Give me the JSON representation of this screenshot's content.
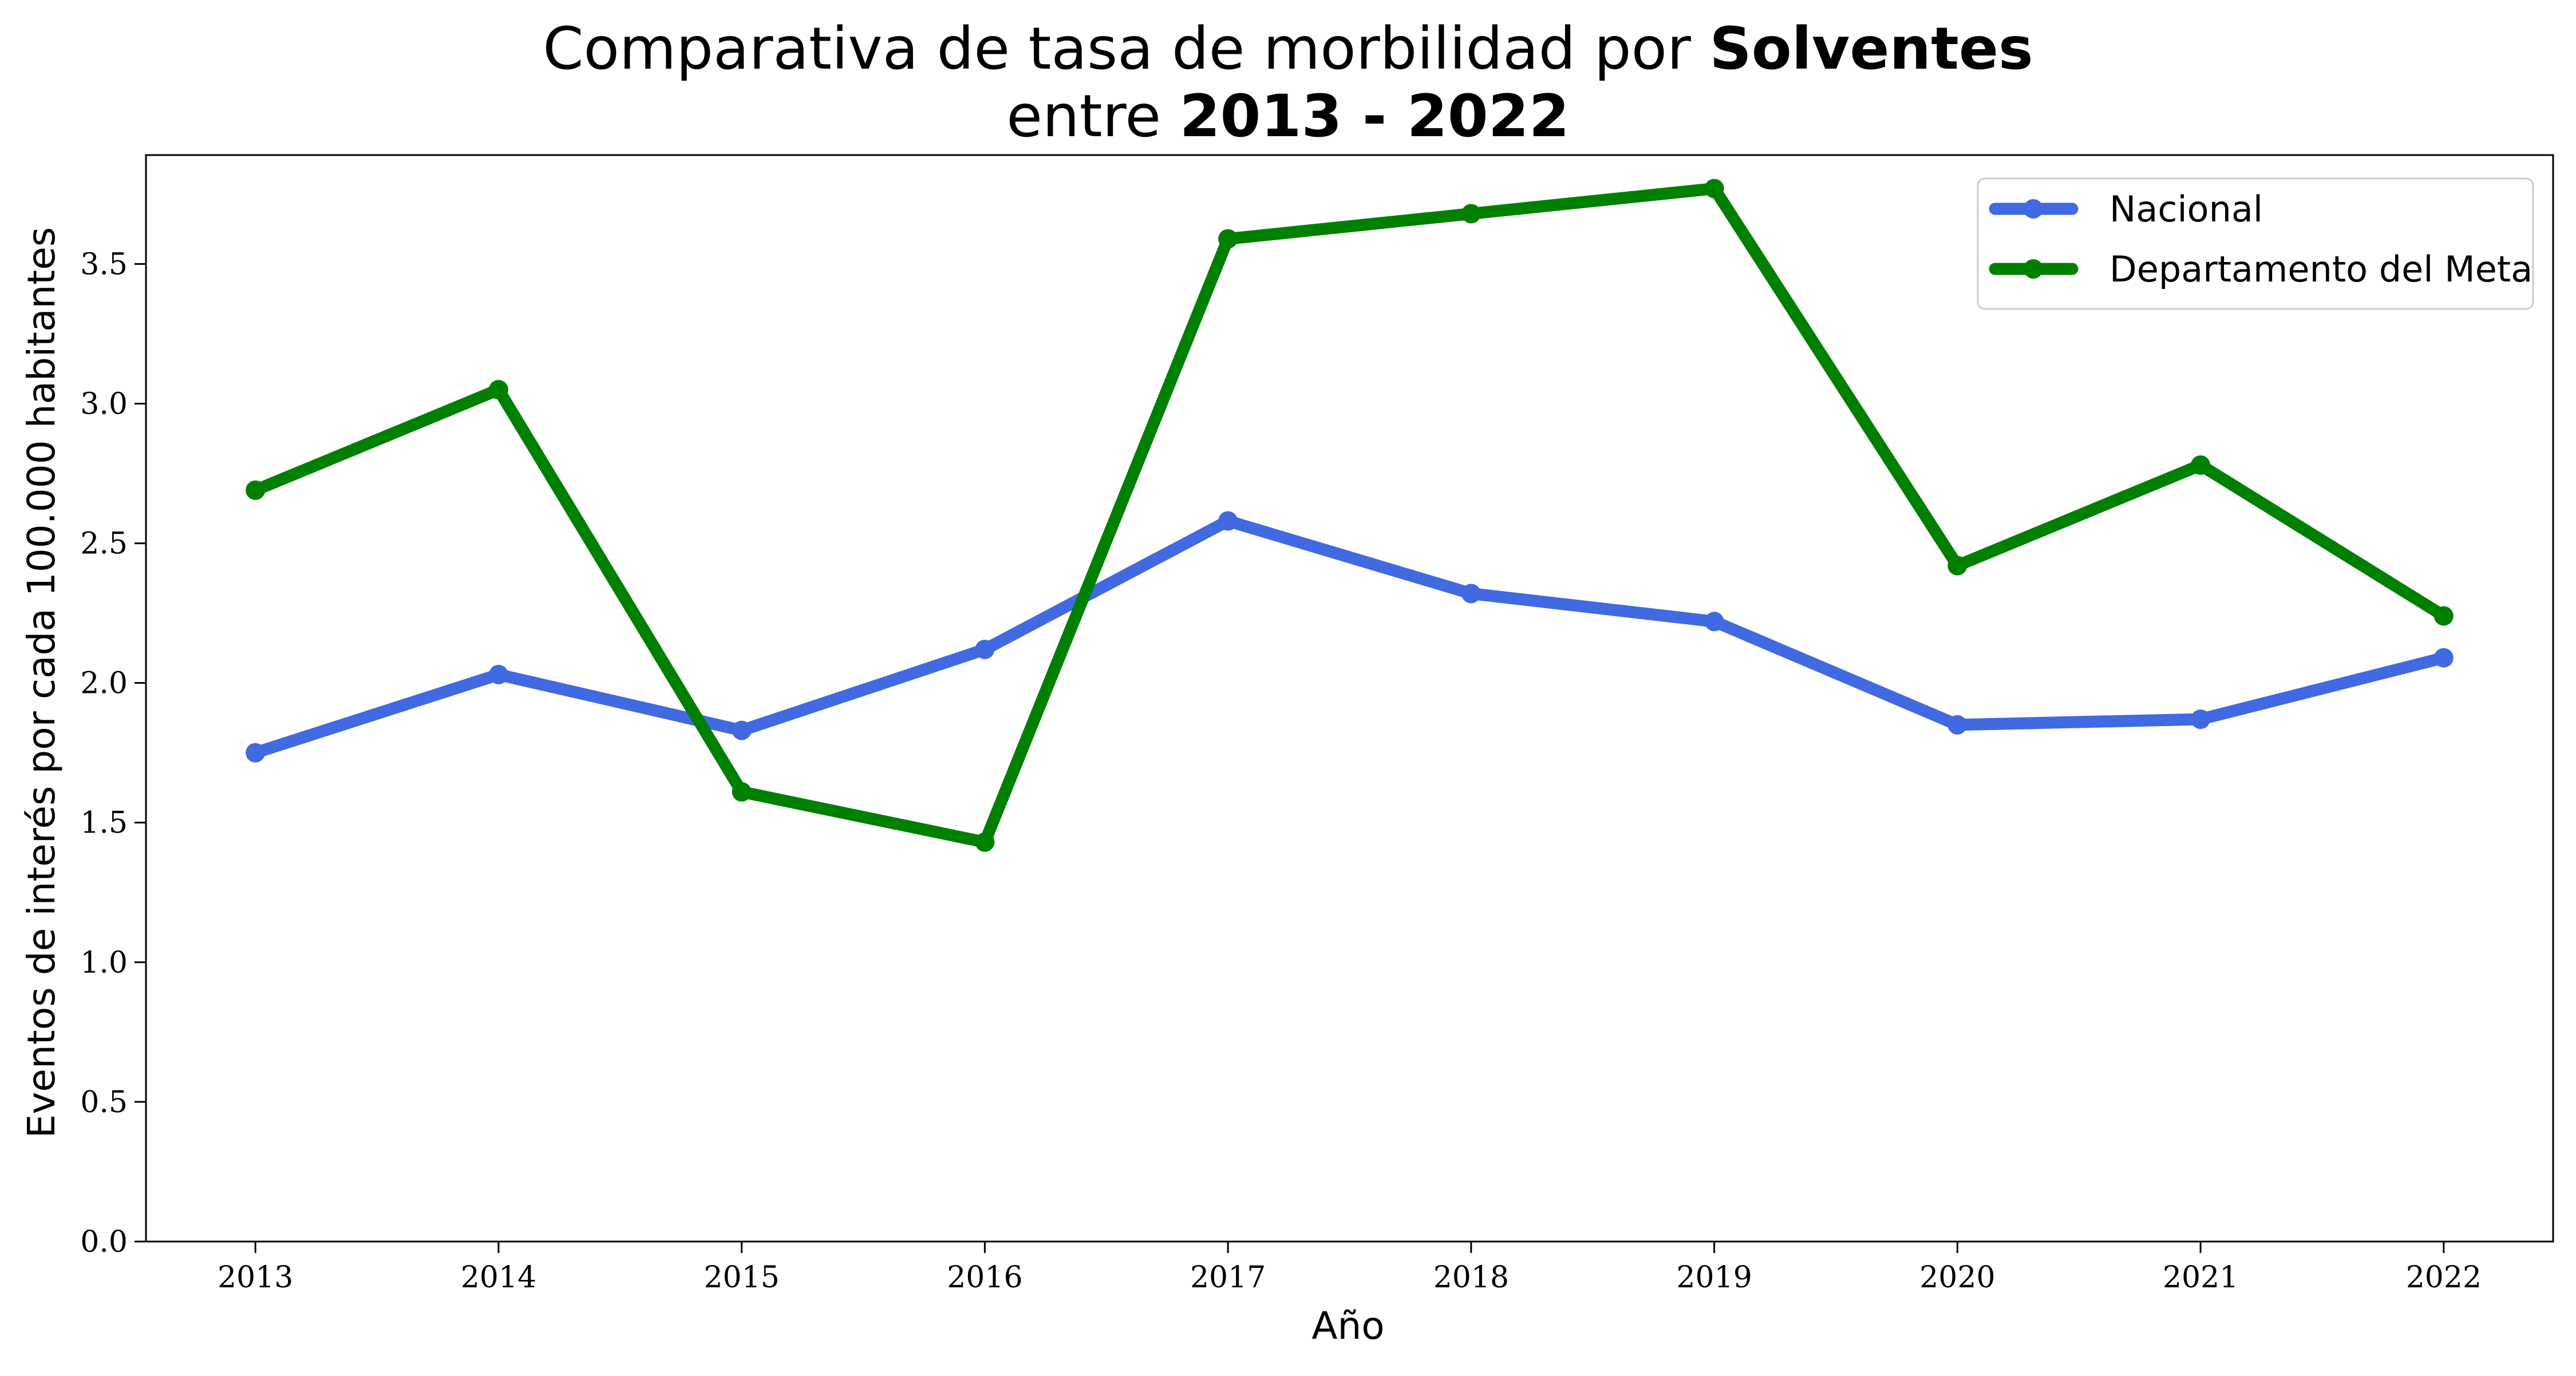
{
  "chart_data": {
    "type": "line",
    "title": {
      "line1_prefix": "Comparativa de tasa de morbilidad por ",
      "line1_bold": "Solventes",
      "line2_prefix": "entre ",
      "line2_bold": "2013 - 2022"
    },
    "xlabel": "Año",
    "ylabel": "Eventos de interés por cada 100.000 habitantes",
    "x": [
      2013,
      2014,
      2015,
      2016,
      2017,
      2018,
      2019,
      2020,
      2021,
      2022
    ],
    "x_tick_labels": [
      "2013",
      "2014",
      "2015",
      "2016",
      "2017",
      "2018",
      "2019",
      "2020",
      "2021",
      "2022"
    ],
    "y_ticks": [
      0.0,
      0.5,
      1.0,
      1.5,
      2.0,
      2.5,
      3.0,
      3.5
    ],
    "y_tick_labels": [
      "0.0",
      "0.5",
      "1.0",
      "1.5",
      "2.0",
      "2.5",
      "3.0",
      "3.5"
    ],
    "xlim": [
      2012.55,
      2022.45
    ],
    "ylim": [
      0,
      3.89
    ],
    "grid": false,
    "legend_position": "top-right",
    "series": [
      {
        "name": "Nacional",
        "color": "#4169e1",
        "values": [
          1.75,
          2.03,
          1.83,
          2.12,
          2.58,
          2.32,
          2.22,
          1.85,
          1.87,
          2.09
        ]
      },
      {
        "name": "Departamento del Meta",
        "color": "#008000",
        "values": [
          2.69,
          3.05,
          1.61,
          1.43,
          3.59,
          3.68,
          3.77,
          2.42,
          2.78,
          2.24
        ]
      }
    ]
  }
}
